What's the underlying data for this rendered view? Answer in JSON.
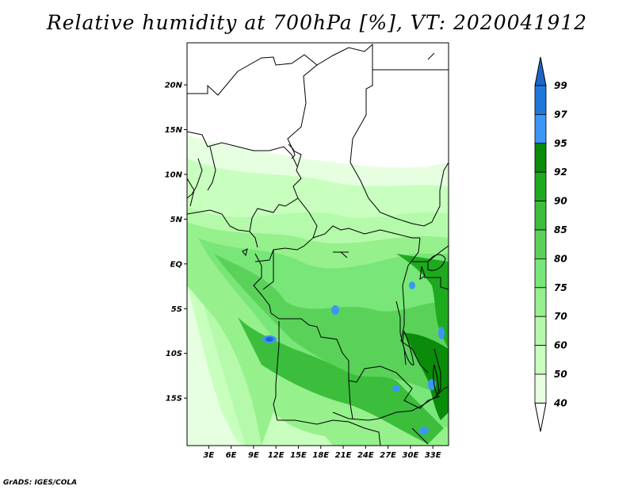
{
  "title": "Relative humidity at 700hPa [%], VT: 2020041912",
  "credit": "GrADS: IGES/COLA",
  "map": {
    "lat_labels": [
      "20N",
      "15N",
      "10N",
      "5N",
      "EQ",
      "5S",
      "10S",
      "15S"
    ],
    "lat_values": [
      20,
      15,
      10,
      5,
      0,
      -5,
      -10,
      -15
    ],
    "lon_labels": [
      "3E",
      "6E",
      "9E",
      "12E",
      "15E",
      "18E",
      "21E",
      "24E",
      "27E",
      "30E",
      "33E"
    ],
    "lon_values": [
      3,
      6,
      9,
      12,
      15,
      18,
      21,
      24,
      27,
      30,
      33
    ]
  },
  "colorbar": {
    "labels": [
      "99",
      "97",
      "95",
      "92",
      "90",
      "85",
      "80",
      "75",
      "70",
      "60",
      "50",
      "40"
    ],
    "levels": [
      99,
      97,
      95,
      92,
      90,
      85,
      80,
      75,
      70,
      60,
      50,
      40
    ],
    "colors": [
      "#1e64c8",
      "#1e78dc",
      "#3c96f5",
      "#0a8c0a",
      "#1eaa1e",
      "#3cbe3c",
      "#5ad25a",
      "#78e678",
      "#96f08c",
      "#b4faaa",
      "#c8ffbe",
      "#e6ffe1",
      "#ffffff"
    ]
  }
}
